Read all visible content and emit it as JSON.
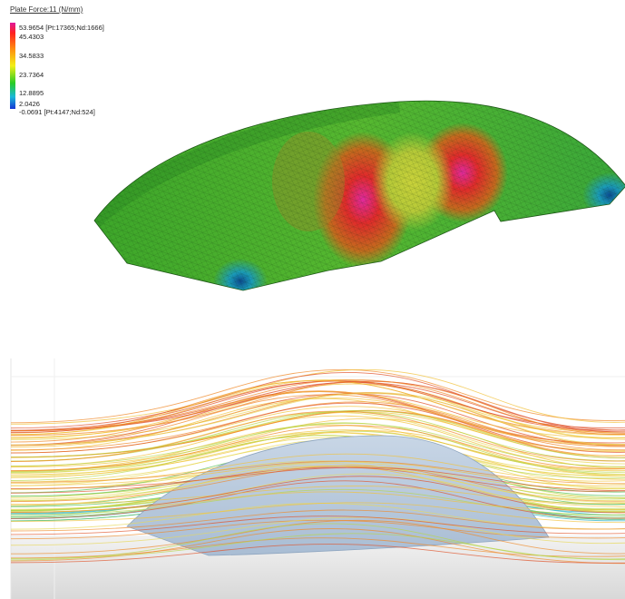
{
  "legend": {
    "title": "Plate Force:11 (N/mm)",
    "max_label": "53.9654 [Pt:17365;Nd:1666]",
    "ticks": [
      "45.4303",
      "34.5833",
      "23.7364",
      "12.8895",
      "2.0426"
    ],
    "min_label": "-0.0691 [Pt:4147;Nd:524]",
    "colors": [
      "#e0189a",
      "#ff2020",
      "#ff8a10",
      "#f2ef16",
      "#28cc25",
      "#19b8d8",
      "#1535d4"
    ]
  }
}
